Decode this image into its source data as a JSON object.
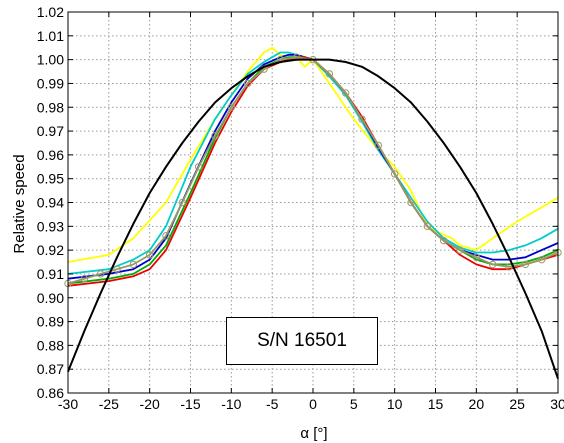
{
  "chart_data": {
    "type": "line",
    "xlabel": "α [°]",
    "ylabel": "Relative speed",
    "xlim": [
      -30,
      30
    ],
    "ylim": [
      0.86,
      1.02
    ],
    "xticks": [
      "-30",
      "-25",
      "-20",
      "-15",
      "-10",
      "-5",
      "0",
      "5",
      "10",
      "15",
      "20",
      "25",
      "30"
    ],
    "yticks": [
      "0.86",
      "0.87",
      "0.88",
      "0.89",
      "0.90",
      "0.91",
      "0.92",
      "0.93",
      "0.94",
      "0.95",
      "0.96",
      "0.97",
      "0.98",
      "0.99",
      "1.00",
      "1.01",
      "1.02"
    ],
    "grid": true,
    "annotation": "S/N 16501",
    "series": [
      {
        "color": "#ffff00",
        "marker": "none",
        "x": [
          -30,
          -25,
          -22,
          -18,
          -15,
          -12,
          -10,
          -8,
          -6,
          -5,
          -4,
          -3,
          -2,
          -1,
          0,
          1,
          2,
          3,
          5,
          8,
          10,
          12,
          14,
          15,
          17,
          18,
          20,
          22,
          25,
          28,
          30
        ],
        "y": [
          0.915,
          0.918,
          0.925,
          0.94,
          0.958,
          0.975,
          0.985,
          0.995,
          1.003,
          1.005,
          1.002,
          1.0,
          1.001,
          0.997,
          1.0,
          0.995,
          0.99,
          0.985,
          0.975,
          0.962,
          0.955,
          0.945,
          0.93,
          0.928,
          0.925,
          0.922,
          0.92,
          0.925,
          0.932,
          0.938,
          0.942
        ]
      },
      {
        "color": "#00cccc",
        "marker": "none",
        "x": [
          -30,
          -25,
          -22,
          -20,
          -18,
          -15,
          -12,
          -10,
          -8,
          -6,
          -5,
          -4,
          -3,
          -2,
          -1,
          0,
          2,
          4,
          6,
          8,
          10,
          12,
          14,
          16,
          18,
          20,
          22,
          24,
          26,
          28,
          30
        ],
        "y": [
          0.91,
          0.912,
          0.916,
          0.92,
          0.93,
          0.955,
          0.975,
          0.985,
          0.994,
          0.999,
          1.001,
          1.003,
          1.003,
          1.002,
          1.001,
          1.0,
          0.993,
          0.985,
          0.974,
          0.962,
          0.952,
          0.942,
          0.932,
          0.925,
          0.921,
          0.919,
          0.919,
          0.92,
          0.922,
          0.925,
          0.929
        ]
      },
      {
        "color": "#0000cc",
        "marker": "none",
        "x": [
          -30,
          -25,
          -22,
          -20,
          -18,
          -15,
          -12,
          -10,
          -8,
          -6,
          -4,
          -3,
          -2,
          -1,
          0,
          2,
          4,
          6,
          8,
          10,
          12,
          14,
          16,
          18,
          20,
          22,
          24,
          26,
          28,
          30
        ],
        "y": [
          0.908,
          0.91,
          0.912,
          0.916,
          0.925,
          0.948,
          0.97,
          0.982,
          0.992,
          0.998,
          1.001,
          1.002,
          1.002,
          1.001,
          1.0,
          0.994,
          0.986,
          0.975,
          0.963,
          0.952,
          0.94,
          0.93,
          0.924,
          0.92,
          0.918,
          0.916,
          0.916,
          0.917,
          0.92,
          0.923
        ]
      },
      {
        "color": "#00aa00",
        "marker": "none",
        "x": [
          -30,
          -25,
          -22,
          -20,
          -18,
          -15,
          -12,
          -10,
          -8,
          -6,
          -4,
          -3,
          -2,
          -1,
          0,
          2,
          4,
          6,
          8,
          10,
          12,
          14,
          16,
          18,
          20,
          22,
          24,
          26,
          28,
          30
        ],
        "y": [
          0.906,
          0.908,
          0.91,
          0.914,
          0.922,
          0.944,
          0.967,
          0.98,
          0.99,
          0.997,
          1.0,
          1.001,
          1.001,
          1.001,
          1.0,
          0.994,
          0.986,
          0.975,
          0.964,
          0.952,
          0.94,
          0.93,
          0.924,
          0.92,
          0.916,
          0.914,
          0.914,
          0.915,
          0.917,
          0.92
        ]
      },
      {
        "color": "#ee0000",
        "marker": "none",
        "x": [
          -30,
          -25,
          -22,
          -20,
          -18,
          -15,
          -12,
          -10,
          -8,
          -6,
          -4,
          -3,
          -2,
          -1,
          0,
          2,
          4,
          6,
          8,
          10,
          12,
          14,
          16,
          18,
          20,
          22,
          24,
          26,
          28,
          30
        ],
        "y": [
          0.905,
          0.907,
          0.909,
          0.912,
          0.92,
          0.942,
          0.965,
          0.978,
          0.989,
          0.996,
          0.999,
          1.0,
          1.001,
          1.001,
          1.0,
          0.994,
          0.986,
          0.976,
          0.964,
          0.952,
          0.94,
          0.93,
          0.924,
          0.918,
          0.914,
          0.912,
          0.912,
          0.914,
          0.916,
          0.918
        ]
      },
      {
        "color": "#999966",
        "marker": "circle",
        "x": [
          -30,
          -28,
          -26,
          -24,
          -22,
          -20,
          -18,
          -16,
          -14,
          -12,
          -10,
          -8,
          -6,
          -4,
          -2,
          0,
          2,
          4,
          6,
          8,
          10,
          12,
          14,
          16,
          18,
          20,
          22,
          24,
          26,
          28,
          30
        ],
        "y": [
          0.906,
          0.908,
          0.91,
          0.912,
          0.914,
          0.918,
          0.926,
          0.94,
          0.955,
          0.968,
          0.98,
          0.99,
          0.996,
          1.0,
          1.001,
          1.0,
          0.994,
          0.986,
          0.975,
          0.964,
          0.952,
          0.94,
          0.93,
          0.924,
          0.92,
          0.917,
          0.914,
          0.913,
          0.914,
          0.916,
          0.919
        ]
      },
      {
        "color": "#000000",
        "marker": "none",
        "x": [
          -30,
          -28,
          -26,
          -24,
          -22,
          -20,
          -18,
          -16,
          -14,
          -12,
          -10,
          -8,
          -6,
          -4,
          -2,
          0,
          2,
          4,
          6,
          8,
          10,
          12,
          14,
          16,
          18,
          20,
          22,
          24,
          26,
          28,
          30
        ],
        "y": [
          0.869,
          0.886,
          0.902,
          0.917,
          0.931,
          0.944,
          0.955,
          0.965,
          0.974,
          0.982,
          0.988,
          0.993,
          0.997,
          0.999,
          1.0,
          1.0,
          1.0,
          0.999,
          0.997,
          0.993,
          0.988,
          0.982,
          0.974,
          0.965,
          0.955,
          0.944,
          0.931,
          0.917,
          0.902,
          0.886,
          0.866
        ]
      }
    ]
  }
}
